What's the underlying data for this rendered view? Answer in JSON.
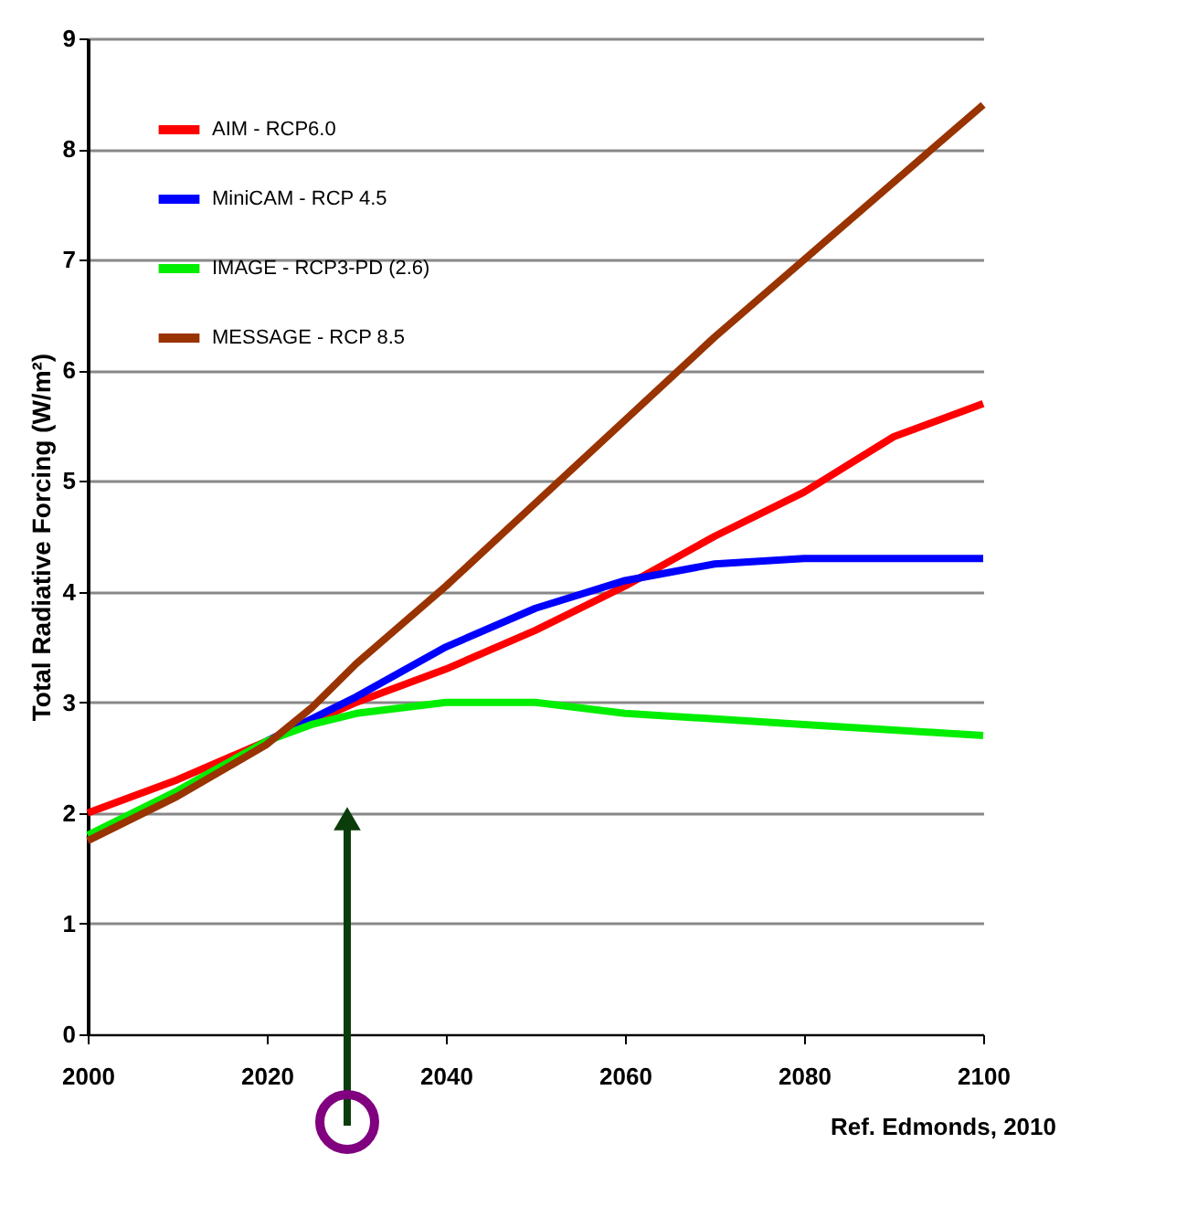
{
  "chart_data": {
    "type": "line",
    "x": [
      2000,
      2010,
      2020,
      2025,
      2030,
      2040,
      2050,
      2060,
      2070,
      2080,
      2090,
      2100
    ],
    "series": [
      {
        "name": "AIM - RCP6.0",
        "color": "#ff0000",
        "values": [
          2.0,
          2.3,
          2.65,
          2.82,
          3.0,
          3.3,
          3.65,
          4.05,
          4.5,
          4.9,
          5.4,
          5.7
        ]
      },
      {
        "name": "MiniCAM - RCP 4.5",
        "color": "#0000ff",
        "values": [
          null,
          null,
          2.65,
          2.85,
          3.05,
          3.5,
          3.85,
          4.1,
          4.25,
          4.3,
          4.3,
          4.3
        ]
      },
      {
        "name": "IMAGE - RCP3-PD (2.6)",
        "color": "#00ee00",
        "values": [
          1.8,
          2.2,
          2.65,
          2.8,
          2.9,
          3.0,
          3.0,
          2.9,
          2.85,
          2.8,
          2.75,
          2.7
        ]
      },
      {
        "name": "MESSAGE - RCP 8.5",
        "color": "#993300",
        "values": [
          1.75,
          2.15,
          2.62,
          2.95,
          3.35,
          4.05,
          4.8,
          5.55,
          6.3,
          7.0,
          7.7,
          8.4
        ]
      }
    ],
    "ylabel": "Total Radiative Forcing (W/m²)",
    "xlim": [
      2000,
      2100
    ],
    "xticks": [
      2000,
      2020,
      2040,
      2060,
      2080,
      2100
    ],
    "ylim": [
      0,
      9
    ],
    "yticks": [
      0,
      1,
      2,
      3,
      4,
      5,
      6,
      7,
      8,
      9
    ],
    "grid": "y",
    "legend": "top left",
    "line_style": "solid",
    "marker": "none",
    "annotations": [
      "Ref. Edmonds, 2010"
    ]
  }
}
